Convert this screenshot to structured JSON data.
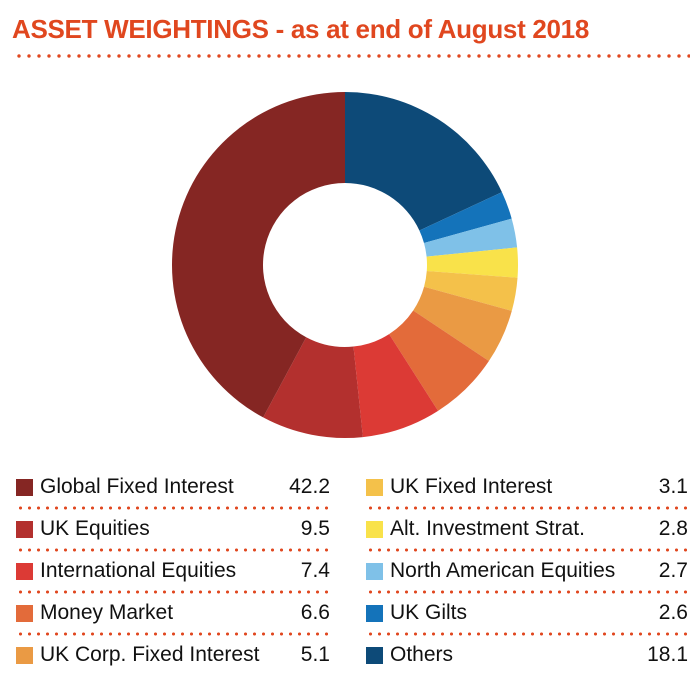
{
  "title": "ASSET WEIGHTINGS - as at end of August 2018",
  "chart_data": {
    "type": "pie",
    "donut": true,
    "categories": [
      "Global Fixed Interest",
      "UK Equities",
      "International Equities",
      "Money Market",
      "UK Corp. Fixed Interest",
      "UK Fixed Interest",
      "Alt. Investment Strat.",
      "North American Equities",
      "UK Gilts",
      "Others"
    ],
    "values": [
      42.2,
      9.5,
      7.4,
      6.6,
      5.1,
      3.1,
      2.8,
      2.7,
      2.6,
      18.1
    ],
    "value_labels": [
      "42.2",
      "9.5",
      "7.4",
      "6.6",
      "5.1",
      "3.1",
      "2.8",
      "2.7",
      "2.6",
      "18.1"
    ],
    "colors": [
      "#852623",
      "#b3302e",
      "#dc3a35",
      "#e36b3a",
      "#ea9a44",
      "#f4c14a",
      "#f9e24a",
      "#7fc1e8",
      "#1473ba",
      "#0d4a78"
    ],
    "legend_placement": "bottom, two columns"
  }
}
